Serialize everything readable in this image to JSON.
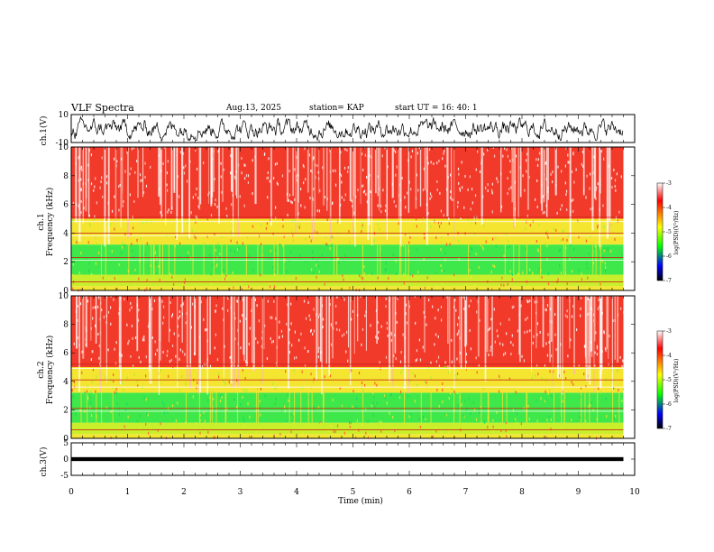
{
  "header": {
    "title": "VLF Spectra",
    "date": "Aug.13, 2025",
    "station": "station= KAP",
    "start": "start  UT =   16: 40: 1"
  },
  "chart_data": [
    {
      "type": "line",
      "name": "ch1-waveform",
      "ylabel": "ch.1(V)",
      "ylim": [
        -10,
        10
      ],
      "yticks": [
        "10",
        "-10"
      ],
      "xlim": [
        0,
        10
      ],
      "data_end_min": 9.8,
      "description_values": {
        "mean": 0,
        "typical_amplitude": 5
      }
    },
    {
      "type": "heatmap",
      "name": "ch1-spectrogram",
      "ylabel_line1": "ch.1",
      "ylabel_line2": "Frequency (kHz)",
      "ylim": [
        0,
        10
      ],
      "yticks": [
        "10",
        "8",
        "6",
        "4",
        "2",
        "0"
      ],
      "xlim": [
        0,
        10
      ],
      "data_end_min": 9.8,
      "bands_khz": [
        {
          "from": 0,
          "to": 0.3,
          "level": "yellow"
        },
        {
          "from": 0.3,
          "to": 1.1,
          "level": "green-yellow"
        },
        {
          "from": 1.1,
          "to": 3.2,
          "level": "green"
        },
        {
          "from": 3.2,
          "to": 5.0,
          "level": "yellow"
        },
        {
          "from": 5.0,
          "to": 10,
          "level": "red"
        }
      ],
      "lines_khz": [
        0.6,
        2.1,
        2.3,
        3.8,
        4.0,
        4.8,
        5.1
      ]
    },
    {
      "type": "heatmap",
      "name": "ch2-spectrogram",
      "ylabel_line1": "ch.2",
      "ylabel_line2": "Frequency (kHz)",
      "ylim": [
        0,
        10
      ],
      "yticks": [
        "10",
        "8",
        "6",
        "4",
        "2",
        "0"
      ],
      "xlim": [
        0,
        10
      ],
      "data_end_min": 9.8,
      "bands_khz": [
        {
          "from": 0,
          "to": 0.3,
          "level": "yellow"
        },
        {
          "from": 0.3,
          "to": 1.1,
          "level": "green-yellow"
        },
        {
          "from": 1.1,
          "to": 3.2,
          "level": "green"
        },
        {
          "from": 3.2,
          "to": 5.0,
          "level": "yellow"
        },
        {
          "from": 5.0,
          "to": 10,
          "level": "red"
        }
      ],
      "lines_khz": [
        0.6,
        1.9,
        2.1,
        3.6,
        4.1,
        4.9,
        5.2
      ]
    },
    {
      "type": "line",
      "name": "ch3-waveform",
      "ylabel": "ch.3(V)",
      "ylim": [
        -5,
        5
      ],
      "yticks": [
        "5",
        "0",
        "-5"
      ],
      "xlim": [
        0,
        10
      ],
      "xticks": [
        "0",
        "1",
        "2",
        "3",
        "4",
        "5",
        "6",
        "7",
        "8",
        "9",
        "10"
      ],
      "xlabel": "Time (min)",
      "data_end_min": 9.8,
      "description_values": {
        "level": 0,
        "band_halfwidth": 0.6
      }
    }
  ],
  "colorbar": {
    "label": "log(PSD)(V²/Hz)",
    "range": [
      -7,
      -3
    ],
    "ticks": [
      "-3",
      "-4",
      "-5",
      "-6",
      "-7"
    ],
    "colors": [
      "#ffffff",
      "#ff0000",
      "#ffff00",
      "#00ff00",
      "#0000ff",
      "#000000"
    ]
  }
}
